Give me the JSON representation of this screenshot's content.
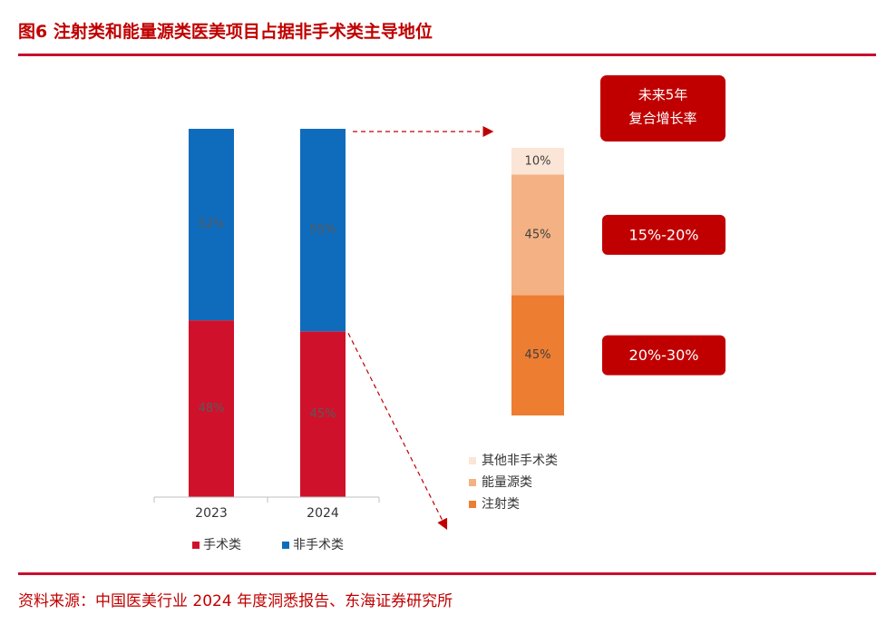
{
  "title": "图6  注射类和能量源类医美项目占据非手术类主导地位",
  "source": "资料来源：中国医美行业 2024 年度洞悉报告、东海证券研究所",
  "chart_data": [
    {
      "type": "bar",
      "stacked": true,
      "categories": [
        "2023",
        "2024"
      ],
      "series": [
        {
          "name": "手术类",
          "values": [
            48,
            45
          ],
          "labels": [
            "48%",
            "45%"
          ],
          "color": "#d0112b"
        },
        {
          "name": "非手术类",
          "values": [
            52,
            55
          ],
          "labels": [
            "52%",
            "55%"
          ],
          "color": "#0f6cbd"
        }
      ],
      "legend": "bottom",
      "ylim": [
        0,
        100
      ]
    },
    {
      "type": "bar",
      "stacked": true,
      "categories": [
        ""
      ],
      "series": [
        {
          "name": "注射类",
          "values": [
            45
          ],
          "labels": [
            "45%"
          ],
          "color": "#ed7d31",
          "cagr": "20%-30%"
        },
        {
          "name": "能量源类",
          "values": [
            45
          ],
          "labels": [
            "45%"
          ],
          "color": "#f4b183",
          "cagr": "15%-20%"
        },
        {
          "name": "其他非手术类",
          "values": [
            10
          ],
          "labels": [
            "10%"
          ],
          "color": "#fbe5d6"
        }
      ],
      "legend": "bottom-right",
      "ylim": [
        0,
        100
      ]
    }
  ],
  "cagr_header": [
    "未来5年",
    "复合增长率"
  ],
  "colors": {
    "accent": "#c8102e",
    "box": "#c00000",
    "axis": "#bfbfbf"
  }
}
